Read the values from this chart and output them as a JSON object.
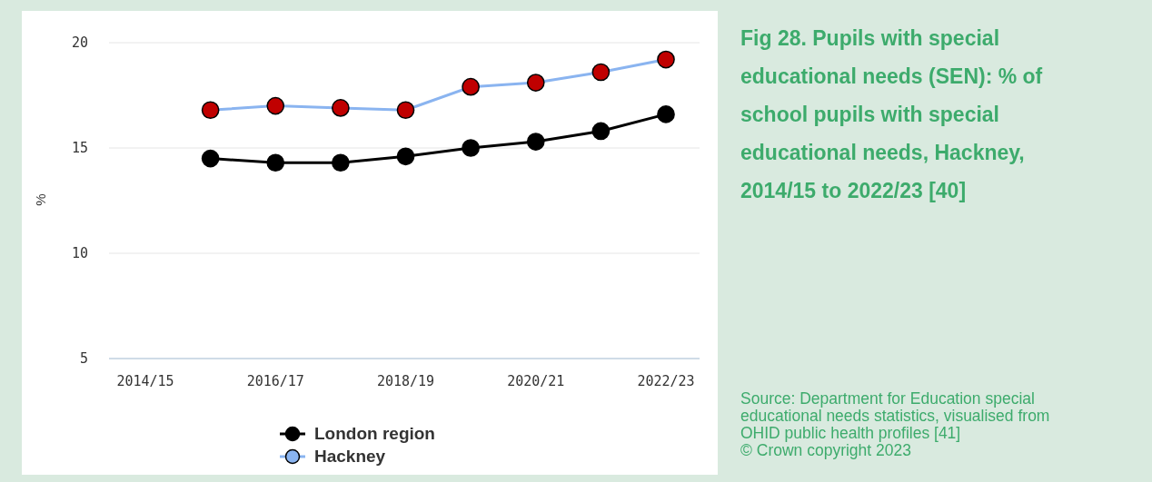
{
  "chart_data": {
    "type": "line",
    "title": "Fig 28. Pupils with special educational needs (SEN): % of school pupils with special educational needs, Hackney, 2014/15 to 2022/23 [40]",
    "ylabel": "%",
    "categories": [
      "2014/15",
      null,
      "2016/17",
      null,
      "2018/19",
      null,
      "2020/21",
      null,
      "2022/23"
    ],
    "series": [
      {
        "name": "London region",
        "color": "#000000",
        "values": [
          null,
          14.5,
          14.3,
          14.3,
          14.6,
          15.0,
          15.3,
          15.8,
          16.6
        ]
      },
      {
        "name": "Hackney",
        "color": "#8ab4f0",
        "colors": [
          null,
          "#c00000",
          "#c00000",
          "#c00000",
          "#c00000",
          "#c00000",
          "#c00000",
          "#c00000",
          "#c00000"
        ],
        "values": [
          null,
          16.8,
          17.0,
          16.9,
          16.8,
          17.9,
          18.1,
          18.6,
          19.2
        ]
      }
    ],
    "ylim": [
      5,
      20
    ],
    "yticks": [
      5,
      10,
      15,
      20
    ],
    "grid": "y",
    "marker": "circle",
    "legend": "bottom",
    "annotations": [
      "Source: Department for Education special educational needs statistics, visualised from OHID public health profiles [41]",
      "© Crown copyright 2023"
    ]
  }
}
